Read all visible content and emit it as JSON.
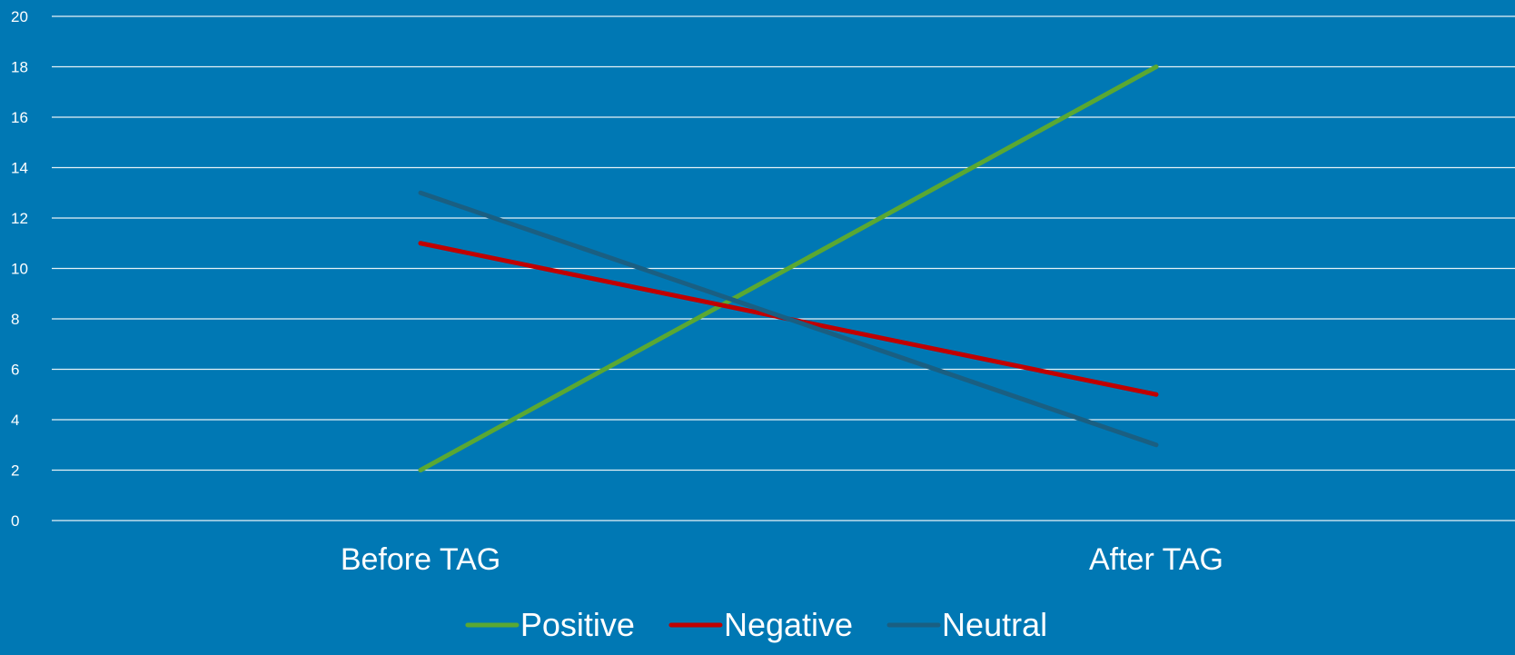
{
  "chart_data": {
    "type": "line",
    "categories": [
      "Before TAG",
      "After TAG"
    ],
    "series": [
      {
        "name": "Positive",
        "values": [
          2,
          18
        ],
        "color": "#5aa832"
      },
      {
        "name": "Negative",
        "values": [
          11,
          5
        ],
        "color": "#c00000"
      },
      {
        "name": "Neutral",
        "values": [
          13,
          3
        ],
        "color": "#1a5f82"
      }
    ],
    "ylim": [
      0,
      20
    ],
    "yticks": [
      0,
      2,
      4,
      6,
      8,
      10,
      12,
      14,
      16,
      18,
      20
    ],
    "grid": true,
    "legend_position": "bottom",
    "background_color": "#0078b4",
    "gridline_color": "#ffffff",
    "text_color": "#ffffff"
  }
}
